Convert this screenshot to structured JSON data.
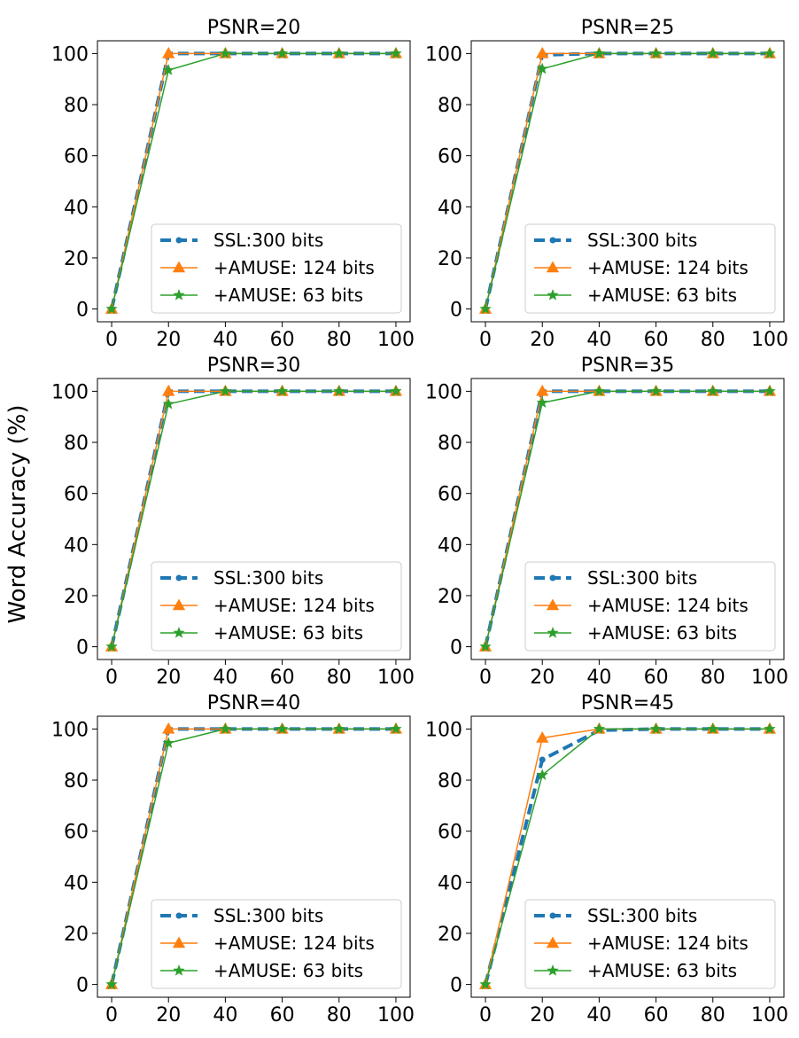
{
  "figure": {
    "ylabel": "Word Accuracy (%)"
  },
  "colors": {
    "ssl": "#1f77b4",
    "amuse124": "#ff7f0e",
    "amuse63": "#2ca02c"
  },
  "chart_data": [
    {
      "type": "line",
      "title": "PSNR=20",
      "xlabel": "",
      "ylabel": "Word Accuracy (%)",
      "x": [
        0,
        20,
        40,
        60,
        80,
        100
      ],
      "xlim": [
        -5,
        105
      ],
      "ylim": [
        -5,
        105
      ],
      "xticks": [
        0,
        20,
        40,
        60,
        80,
        100
      ],
      "yticks": [
        0,
        20,
        40,
        60,
        80,
        100
      ],
      "grid": false,
      "legend": "lower-right",
      "series": [
        {
          "name": "SSL:300 bits",
          "values": [
            0,
            100,
            100,
            100,
            100,
            100
          ]
        },
        {
          "name": "+AMUSE: 124 bits",
          "values": [
            0,
            100,
            100,
            100,
            100,
            100
          ]
        },
        {
          "name": "+AMUSE: 63 bits",
          "values": [
            0,
            93.5,
            100,
            100,
            100,
            100
          ]
        }
      ]
    },
    {
      "type": "line",
      "title": "PSNR=25",
      "xlabel": "",
      "ylabel": "Word Accuracy (%)",
      "x": [
        0,
        20,
        40,
        60,
        80,
        100
      ],
      "xlim": [
        -5,
        105
      ],
      "ylim": [
        -5,
        105
      ],
      "xticks": [
        0,
        20,
        40,
        60,
        80,
        100
      ],
      "yticks": [
        0,
        20,
        40,
        60,
        80,
        100
      ],
      "grid": false,
      "legend": "lower-right",
      "series": [
        {
          "name": "SSL:300 bits",
          "values": [
            0,
            99.5,
            100,
            100,
            100,
            100
          ]
        },
        {
          "name": "+AMUSE: 124 bits",
          "values": [
            0,
            100,
            100,
            100,
            100,
            100
          ]
        },
        {
          "name": "+AMUSE: 63 bits",
          "values": [
            0,
            94,
            100,
            100,
            100,
            100
          ]
        }
      ]
    },
    {
      "type": "line",
      "title": "PSNR=30",
      "xlabel": "",
      "ylabel": "Word Accuracy (%)",
      "x": [
        0,
        20,
        40,
        60,
        80,
        100
      ],
      "xlim": [
        -5,
        105
      ],
      "ylim": [
        -5,
        105
      ],
      "xticks": [
        0,
        20,
        40,
        60,
        80,
        100
      ],
      "yticks": [
        0,
        20,
        40,
        60,
        80,
        100
      ],
      "grid": false,
      "legend": "lower-right",
      "series": [
        {
          "name": "SSL:300 bits",
          "values": [
            0,
            100,
            100,
            100,
            100,
            100
          ]
        },
        {
          "name": "+AMUSE: 124 bits",
          "values": [
            0,
            100,
            100,
            100,
            100,
            100
          ]
        },
        {
          "name": "+AMUSE: 63 bits",
          "values": [
            0,
            95,
            100,
            100,
            100,
            100
          ]
        }
      ]
    },
    {
      "type": "line",
      "title": "PSNR=35",
      "xlabel": "",
      "ylabel": "Word Accuracy (%)",
      "x": [
        0,
        20,
        40,
        60,
        80,
        100
      ],
      "xlim": [
        -5,
        105
      ],
      "ylim": [
        -5,
        105
      ],
      "xticks": [
        0,
        20,
        40,
        60,
        80,
        100
      ],
      "yticks": [
        0,
        20,
        40,
        60,
        80,
        100
      ],
      "grid": false,
      "legend": "lower-right",
      "series": [
        {
          "name": "SSL:300 bits",
          "values": [
            0,
            100,
            100,
            100,
            100,
            100
          ]
        },
        {
          "name": "+AMUSE: 124 bits",
          "values": [
            0,
            100,
            100,
            100,
            100,
            100
          ]
        },
        {
          "name": "+AMUSE: 63 bits",
          "values": [
            0,
            95.5,
            100,
            100,
            100,
            100
          ]
        }
      ]
    },
    {
      "type": "line",
      "title": "PSNR=40",
      "xlabel": "",
      "ylabel": "Word Accuracy (%)",
      "x": [
        0,
        20,
        40,
        60,
        80,
        100
      ],
      "xlim": [
        -5,
        105
      ],
      "ylim": [
        -5,
        105
      ],
      "xticks": [
        0,
        20,
        40,
        60,
        80,
        100
      ],
      "yticks": [
        0,
        20,
        40,
        60,
        80,
        100
      ],
      "grid": false,
      "legend": "lower-right",
      "series": [
        {
          "name": "SSL:300 bits",
          "values": [
            0,
            100,
            100,
            100,
            100,
            100
          ]
        },
        {
          "name": "+AMUSE: 124 bits",
          "values": [
            0,
            100,
            100,
            100,
            100,
            100
          ]
        },
        {
          "name": "+AMUSE: 63 bits",
          "values": [
            0,
            94.5,
            100,
            100,
            100,
            100
          ]
        }
      ]
    },
    {
      "type": "line",
      "title": "PSNR=45",
      "xlabel": "",
      "ylabel": "Word Accuracy (%)",
      "x": [
        0,
        20,
        40,
        60,
        80,
        100
      ],
      "xlim": [
        -5,
        105
      ],
      "ylim": [
        -5,
        105
      ],
      "xticks": [
        0,
        20,
        40,
        60,
        80,
        100
      ],
      "yticks": [
        0,
        20,
        40,
        60,
        80,
        100
      ],
      "grid": false,
      "legend": "lower-right",
      "series": [
        {
          "name": "SSL:300 bits",
          "values": [
            0,
            88,
            99.5,
            100,
            100,
            100
          ]
        },
        {
          "name": "+AMUSE: 124 bits",
          "values": [
            0,
            96.5,
            100,
            100,
            100,
            100
          ]
        },
        {
          "name": "+AMUSE: 63 bits",
          "values": [
            0,
            82,
            100,
            100,
            100,
            100
          ]
        }
      ]
    }
  ]
}
